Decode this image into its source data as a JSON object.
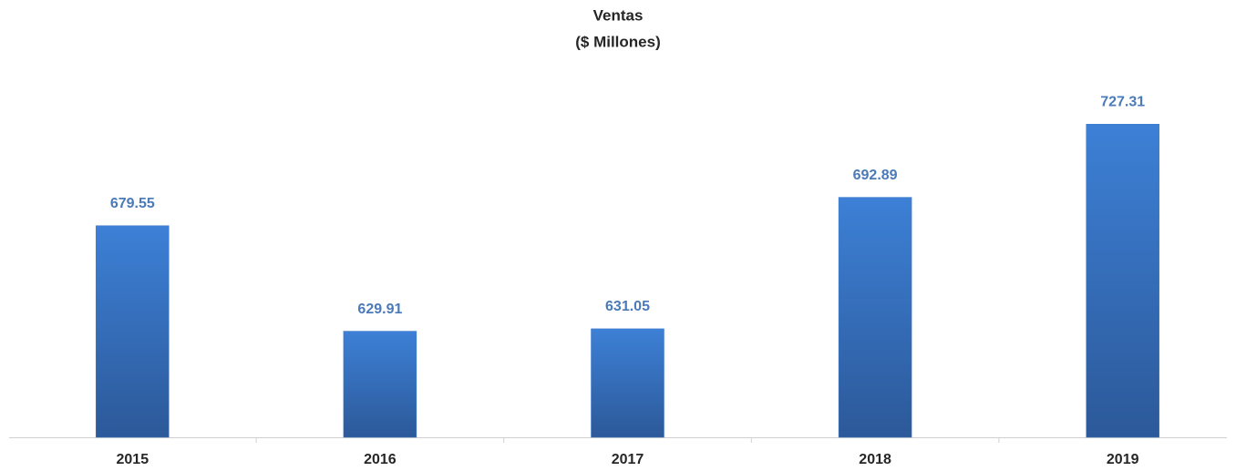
{
  "chart_data": {
    "type": "bar",
    "title": "Ventas",
    "subtitle": "($ Millones)",
    "categories": [
      "2015",
      "2016",
      "2017",
      "2018",
      "2019"
    ],
    "values": [
      679.55,
      629.91,
      631.05,
      692.89,
      727.31
    ],
    "color": "#3a78c8",
    "ylim": [
      580,
      760
    ]
  }
}
